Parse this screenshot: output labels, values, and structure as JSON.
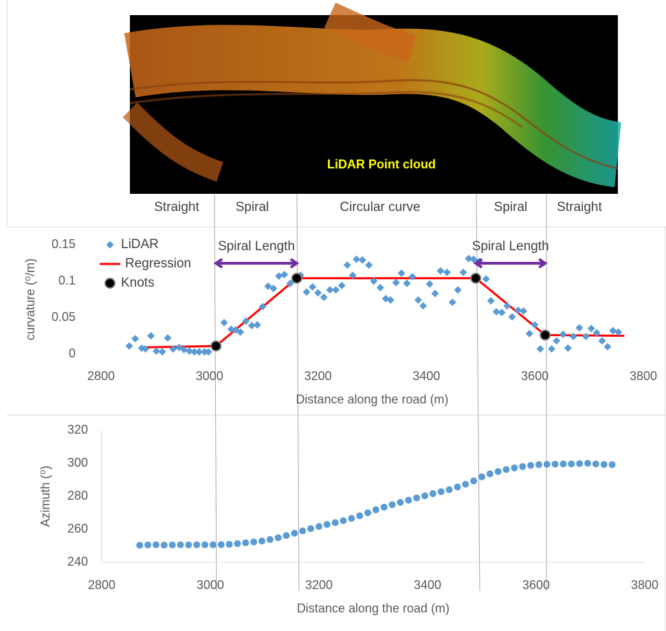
{
  "image_caption": "LiDAR Point cloud",
  "segment_labels": [
    "Straight",
    "Spiral",
    "Circular curve",
    "Spiral",
    "Straight"
  ],
  "chart_data": [
    {
      "type": "scatter",
      "y_label": "curvature (⁰/m)",
      "x_label": "Distance along the road (m)",
      "xlim": [
        2800,
        3800
      ],
      "xticks": [
        2800,
        3000,
        3200,
        3400,
        3600,
        3800
      ],
      "ylim": [
        0,
        0.15
      ],
      "yticks": [
        0,
        0.05,
        0.1,
        0.15
      ],
      "legend": "upper left",
      "annotations": [
        {
          "text": "Spiral Length",
          "x": [
            3012,
            3161
          ]
        },
        {
          "text": "Spiral Length",
          "x": [
            3491,
            3619
          ]
        }
      ],
      "series": [
        {
          "name": "LiDAR",
          "color": "#5b9bd5",
          "marker": "diamond",
          "line": false,
          "x": [
            2852,
            2863,
            2875,
            2882,
            2892,
            2902,
            2913,
            2923,
            2933,
            2944,
            2953,
            2963,
            2972,
            2981,
            2991,
            2998,
            3014,
            3027,
            3040,
            3048,
            3057,
            3067,
            3078,
            3088,
            3098,
            3108,
            3118,
            3128,
            3138,
            3149,
            3168,
            3179,
            3190,
            3200,
            3211,
            3222,
            3233,
            3244,
            3254,
            3264,
            3271,
            3282,
            3294,
            3303,
            3315,
            3325,
            3334,
            3344,
            3354,
            3364,
            3374,
            3385,
            3394,
            3406,
            3416,
            3426,
            3438,
            3448,
            3458,
            3468,
            3478,
            3487,
            3497,
            3510,
            3519,
            3529,
            3539,
            3549,
            3558,
            3569,
            3579,
            3590,
            3600,
            3610,
            3619,
            3631,
            3640,
            3652,
            3661,
            3671,
            3682,
            3694,
            3704,
            3714,
            3724,
            3734,
            3744,
            3754
          ],
          "values": [
            0.011,
            0.021,
            0.008,
            0.007,
            0.025,
            0.004,
            0.003,
            0.022,
            0.007,
            0.009,
            0.006,
            0.004,
            0.003,
            0.003,
            0.003,
            0.003,
            0.011,
            0.043,
            0.034,
            0.033,
            0.03,
            0.045,
            0.039,
            0.04,
            0.065,
            0.093,
            0.09,
            0.107,
            0.109,
            0.097,
            0.108,
            0.085,
            0.092,
            0.084,
            0.078,
            0.088,
            0.088,
            0.094,
            0.122,
            0.108,
            0.13,
            0.129,
            0.122,
            0.1,
            0.091,
            0.076,
            0.074,
            0.098,
            0.111,
            0.097,
            0.106,
            0.074,
            0.066,
            0.096,
            0.083,
            0.114,
            0.112,
            0.071,
            0.088,
            0.112,
            0.131,
            0.13,
            0.127,
            0.103,
            0.073,
            0.058,
            0.057,
            0.066,
            0.051,
            0.06,
            0.059,
            0.028,
            0.04,
            0.007,
            0.027,
            0.007,
            0.018,
            0.027,
            0.008,
            0.024,
            0.036,
            0.024,
            0.035,
            0.029,
            0.018,
            0.01,
            0.032,
            0.03
          ]
        },
        {
          "name": "Regression",
          "color": "#ff0000",
          "marker": "none",
          "line": true,
          "x": [
            2871,
            3012,
            3161,
            3491,
            3619,
            3765
          ],
          "values": [
            0.009,
            0.011,
            0.104,
            0.104,
            0.026,
            0.025
          ]
        },
        {
          "name": "Knots",
          "color": "#000000",
          "marker": "circle",
          "line": false,
          "x": [
            3012,
            3161,
            3491,
            3619
          ],
          "values": [
            0.011,
            0.104,
            0.104,
            0.026
          ]
        }
      ]
    },
    {
      "type": "scatter",
      "y_label": "Azimuth (⁰)",
      "x_label": "Distance along the road (m)",
      "xlim": [
        2800,
        3800
      ],
      "xticks": [
        2800,
        3000,
        3200,
        3400,
        3600,
        3800
      ],
      "ylim": [
        240,
        320
      ],
      "yticks": [
        240,
        260,
        280,
        300,
        320
      ],
      "color": "#5b9bd5",
      "marker": "circle",
      "x": [
        2870,
        2885,
        2900,
        2915,
        2930,
        2945,
        2960,
        2975,
        2990,
        3005,
        3020,
        3035,
        3050,
        3065,
        3080,
        3095,
        3110,
        3125,
        3140,
        3155,
        3170,
        3185,
        3200,
        3215,
        3230,
        3245,
        3260,
        3275,
        3290,
        3305,
        3320,
        3335,
        3350,
        3365,
        3380,
        3395,
        3410,
        3425,
        3440,
        3455,
        3470,
        3485,
        3500,
        3515,
        3530,
        3545,
        3560,
        3575,
        3590,
        3605,
        3620,
        3635,
        3650,
        3665,
        3680,
        3695,
        3710,
        3725,
        3740
      ],
      "values": [
        250.3,
        250.5,
        250.6,
        250.4,
        250.5,
        250.6,
        250.5,
        250.6,
        250.6,
        250.6,
        250.7,
        250.9,
        251.3,
        251.8,
        252.3,
        252.9,
        253.8,
        254.9,
        256.2,
        257.6,
        259.0,
        260.4,
        261.7,
        262.9,
        264.0,
        265.2,
        266.6,
        268.2,
        270.0,
        271.8,
        273.4,
        274.9,
        276.3,
        277.6,
        279.0,
        280.3,
        281.6,
        282.8,
        284.0,
        285.6,
        287.3,
        289.3,
        291.8,
        293.6,
        295.0,
        296.2,
        297.2,
        298.0,
        298.7,
        299.2,
        299.4,
        299.5,
        299.6,
        299.6,
        299.8,
        300.0,
        299.6,
        299.3,
        299.2
      ]
    }
  ]
}
